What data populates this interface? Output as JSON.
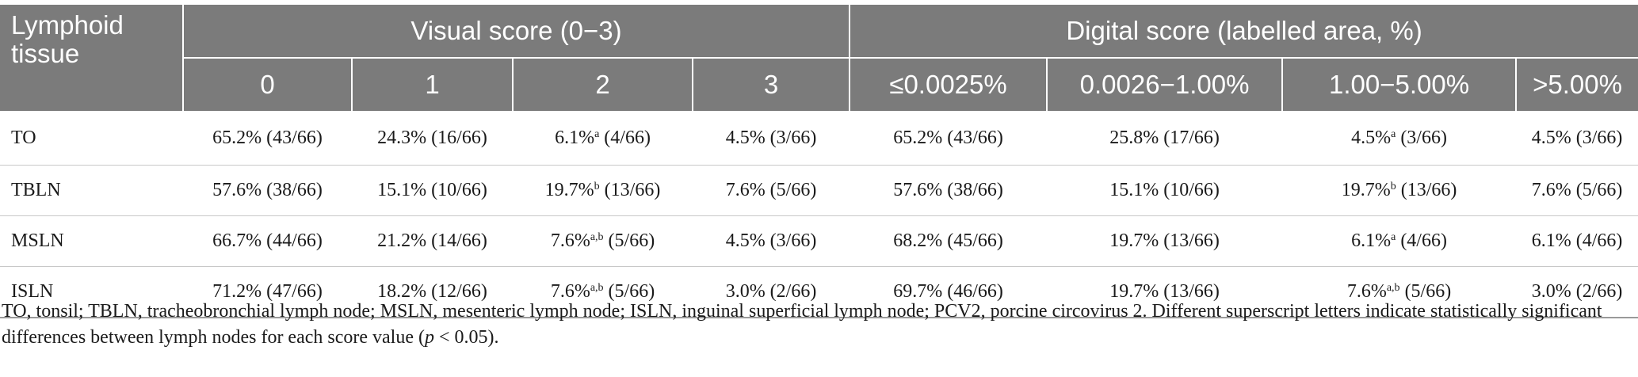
{
  "header": {
    "row_label": "Lymphoid tissue",
    "group_visual": "Visual score (0−3)",
    "group_digital": "Digital score (labelled area, %)",
    "visual_columns": [
      "0",
      "1",
      "2",
      "3"
    ],
    "digital_columns": [
      "≤0.0025%",
      "0.0026−1.00%",
      "1.00−5.00%",
      ">5.00%"
    ]
  },
  "rows": [
    {
      "tissue": "TO",
      "cells": [
        {
          "pre": "65.2% (43/66)",
          "sup": "",
          "post": ""
        },
        {
          "pre": "24.3% (16/66)",
          "sup": "",
          "post": ""
        },
        {
          "pre": "6.1%",
          "sup": "a",
          "post": " (4/66)"
        },
        {
          "pre": "4.5% (3/66)",
          "sup": "",
          "post": ""
        },
        {
          "pre": "65.2% (43/66)",
          "sup": "",
          "post": ""
        },
        {
          "pre": "25.8% (17/66)",
          "sup": "",
          "post": ""
        },
        {
          "pre": "4.5%",
          "sup": "a",
          "post": " (3/66)"
        },
        {
          "pre": "4.5% (3/66)",
          "sup": "",
          "post": ""
        }
      ]
    },
    {
      "tissue": "TBLN",
      "cells": [
        {
          "pre": "57.6% (38/66)",
          "sup": "",
          "post": ""
        },
        {
          "pre": "15.1% (10/66)",
          "sup": "",
          "post": ""
        },
        {
          "pre": "19.7%",
          "sup": "b",
          "post": " (13/66)"
        },
        {
          "pre": "7.6% (5/66)",
          "sup": "",
          "post": ""
        },
        {
          "pre": "57.6% (38/66)",
          "sup": "",
          "post": ""
        },
        {
          "pre": "15.1% (10/66)",
          "sup": "",
          "post": ""
        },
        {
          "pre": "19.7%",
          "sup": "b",
          "post": " (13/66)"
        },
        {
          "pre": "7.6% (5/66)",
          "sup": "",
          "post": ""
        }
      ]
    },
    {
      "tissue": "MSLN",
      "cells": [
        {
          "pre": "66.7% (44/66)",
          "sup": "",
          "post": ""
        },
        {
          "pre": "21.2% (14/66)",
          "sup": "",
          "post": ""
        },
        {
          "pre": "7.6%",
          "sup": "a,b",
          "post": " (5/66)"
        },
        {
          "pre": "4.5% (3/66)",
          "sup": "",
          "post": ""
        },
        {
          "pre": "68.2% (45/66)",
          "sup": "",
          "post": ""
        },
        {
          "pre": "19.7% (13/66)",
          "sup": "",
          "post": ""
        },
        {
          "pre": "6.1%",
          "sup": "a",
          "post": " (4/66)"
        },
        {
          "pre": "6.1% (4/66)",
          "sup": "",
          "post": ""
        }
      ]
    },
    {
      "tissue": "ISLN",
      "cells": [
        {
          "pre": "71.2% (47/66)",
          "sup": "",
          "post": ""
        },
        {
          "pre": "18.2% (12/66)",
          "sup": "",
          "post": ""
        },
        {
          "pre": "7.6%",
          "sup": "a,b",
          "post": " (5/66)"
        },
        {
          "pre": "3.0% (2/66)",
          "sup": "",
          "post": ""
        },
        {
          "pre": "69.7% (46/66)",
          "sup": "",
          "post": ""
        },
        {
          "pre": "19.7% (13/66)",
          "sup": "",
          "post": ""
        },
        {
          "pre": "7.6%",
          "sup": "a,b",
          "post": " (5/66)"
        },
        {
          "pre": "3.0% (2/66)",
          "sup": "",
          "post": ""
        }
      ]
    }
  ],
  "footnote": {
    "text_before": "TO, tonsil; TBLN, tracheobronchial lymph node; MSLN, mesenteric lymph node; ISLN, inguinal superficial lymph node; PCV2, porcine circovirus 2. Different superscript letters indicate statistically significant differences between lymph nodes for each score value (",
    "p_symbol": "p",
    "text_after": " < 0.05)."
  }
}
